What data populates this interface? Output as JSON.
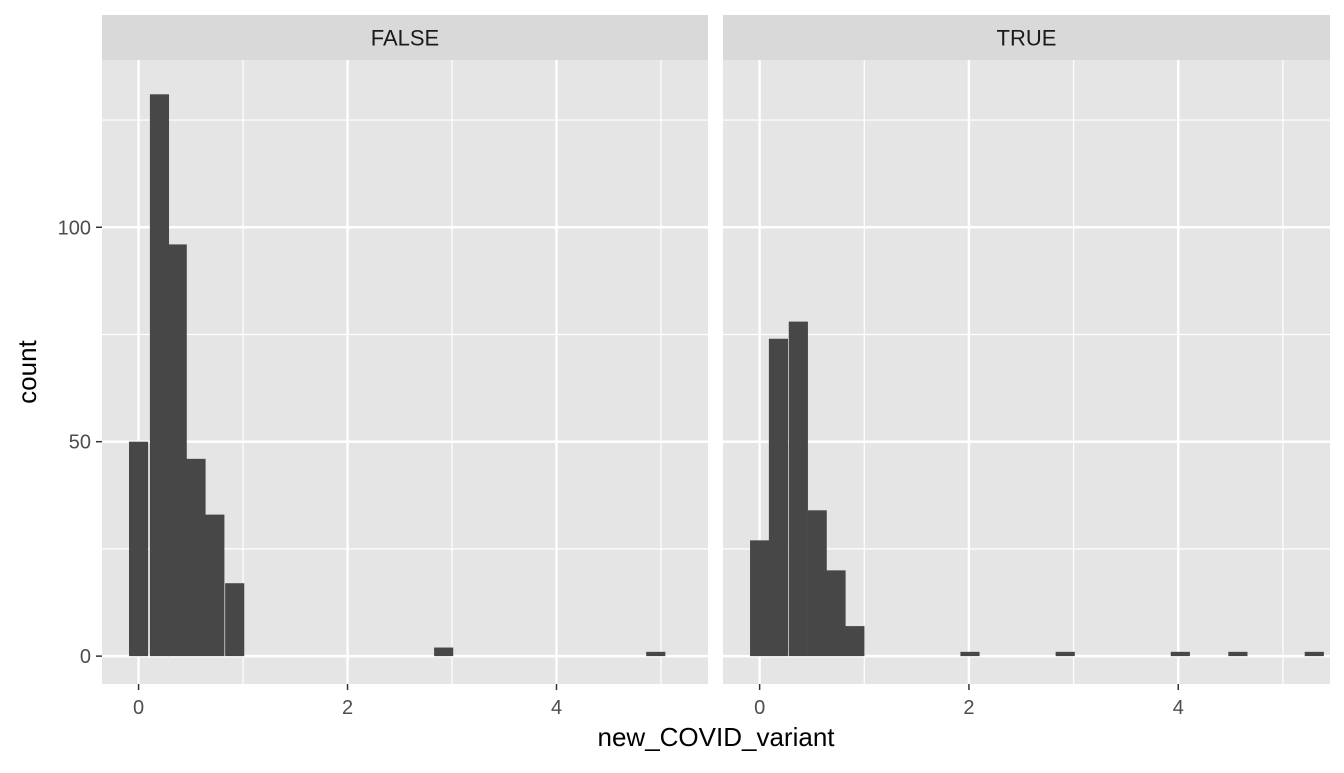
{
  "chart_data": {
    "type": "bar",
    "subtype": "faceted-histogram",
    "xlabel": "new_COVID_variant",
    "ylabel": "count",
    "x_ticks": [
      0,
      2,
      4
    ],
    "y_ticks": [
      0,
      50,
      100
    ],
    "xlim": [
      -0.35,
      5.45
    ],
    "ylim": [
      -6.5,
      139
    ],
    "bin_width": 0.183,
    "panel_background": "#e5e5e5",
    "strip_background": "#d9d9d9",
    "bar_color": "#474747",
    "grid_color": "#ffffff",
    "facets": [
      {
        "label": "FALSE",
        "bins": [
          {
            "x": 0.0,
            "count": 50
          },
          {
            "x": 0.2,
            "count": 131
          },
          {
            "x": 0.37,
            "count": 96
          },
          {
            "x": 0.55,
            "count": 46
          },
          {
            "x": 0.73,
            "count": 33
          },
          {
            "x": 0.92,
            "count": 17
          },
          {
            "x": 2.92,
            "count": 2
          },
          {
            "x": 4.95,
            "count": 1
          }
        ]
      },
      {
        "label": "TRUE",
        "bins": [
          {
            "x": 0.0,
            "count": 27
          },
          {
            "x": 0.18,
            "count": 74
          },
          {
            "x": 0.37,
            "count": 78
          },
          {
            "x": 0.55,
            "count": 34
          },
          {
            "x": 0.73,
            "count": 20
          },
          {
            "x": 0.91,
            "count": 7
          },
          {
            "x": 2.01,
            "count": 1
          },
          {
            "x": 2.92,
            "count": 1
          },
          {
            "x": 4.02,
            "count": 1
          },
          {
            "x": 4.57,
            "count": 1
          },
          {
            "x": 5.3,
            "count": 1
          }
        ]
      }
    ]
  }
}
